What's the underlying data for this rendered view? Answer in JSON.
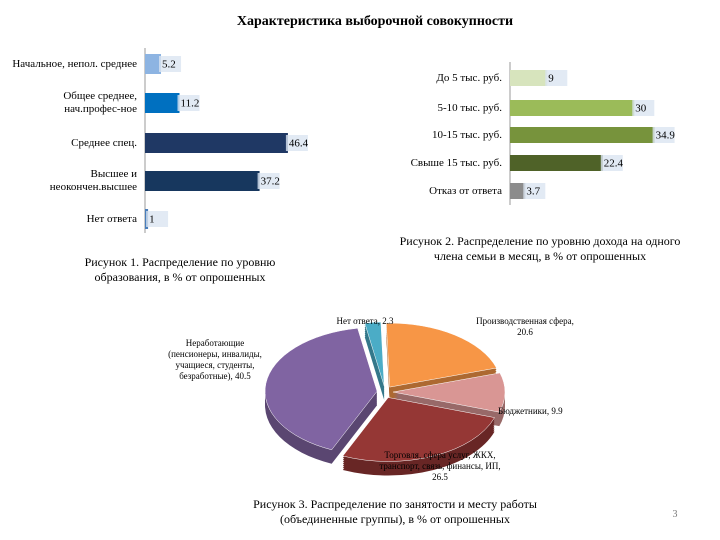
{
  "title": "Характеристика выборочной совокупности",
  "page_number": 3,
  "chart_data": [
    {
      "type": "hbar",
      "categories": [
        "Начальное, непол. среднее",
        "Общее среднее, нач.профес-ное",
        "Среднее спец.",
        "Высшее и неокончен.высшее",
        "Нет ответа"
      ],
      "values": [
        5.2,
        11.2,
        46.4,
        37.2,
        1
      ],
      "colors": [
        "#8db4e2",
        "#0070c0",
        "#1f3864",
        "#17375e",
        "#4a7ebb"
      ],
      "xlim": [
        0,
        50
      ],
      "caption": "Рисунок 1. Распределение по уровню образования, в % от опрошенных"
    },
    {
      "type": "hbar",
      "categories": [
        "До 5 тыс. руб.",
        "5-10 тыс. руб.",
        "10-15 тыс. руб.",
        "Свыше 15 тыс. руб.",
        "Отказ от ответа"
      ],
      "values": [
        9,
        30,
        34.9,
        22.4,
        3.7
      ],
      "colors": [
        "#d7e4bd",
        "#9bbb59",
        "#77933c",
        "#4f6228",
        "#8c8c8c"
      ],
      "xlim": [
        0,
        35
      ],
      "caption": "Рисунок 2. Распределение по уровню дохода на одного члена семьи в месяц, в % от опрошенных"
    },
    {
      "type": "pie",
      "values": [
        2.3,
        20.6,
        9.9,
        26.5,
        40.5
      ],
      "value_labels": [
        "Нет ответа, 2.3",
        "Производственная сфера, 20.6",
        "Бюджетники, 9.9",
        "Торговля, сфера услуг, ЖКХ, транспорт, связь, финансы, ИП, 26.5",
        "Неработающие (пенсионеры, инвалиды, учащиеся, студенты, безработные), 40.5"
      ],
      "colors": [
        "#4bacc6",
        "#f79646",
        "#d99694",
        "#953735",
        "#8064a2"
      ],
      "caption": "Рисунок 3. Распределение по занятости и месту работы (объединенные группы), в % от опрошенных"
    }
  ]
}
